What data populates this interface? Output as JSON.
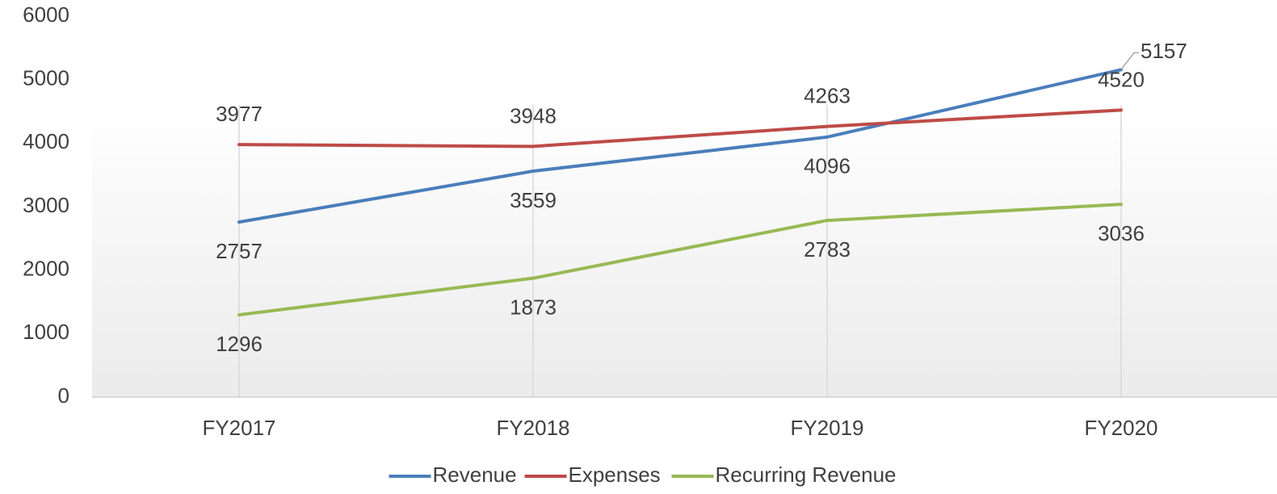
{
  "chart_data": {
    "type": "line",
    "categories": [
      "FY2017",
      "FY2018",
      "FY2019",
      "FY2020"
    ],
    "series": [
      {
        "name": "Revenue",
        "color": "#4a7ebb",
        "values": [
          2757,
          3559,
          4096,
          5157
        ]
      },
      {
        "name": "Expenses",
        "color": "#be4b48",
        "values": [
          3977,
          3948,
          4263,
          4520
        ]
      },
      {
        "name": "Recurring Revenue",
        "color": "#98b954",
        "values": [
          1296,
          1873,
          2783,
          3036
        ]
      }
    ],
    "ylim": [
      0,
      6000
    ],
    "yticks": [
      0,
      1000,
      2000,
      3000,
      4000,
      5000,
      6000
    ],
    "grid": "vertical",
    "legend": "bottom"
  }
}
